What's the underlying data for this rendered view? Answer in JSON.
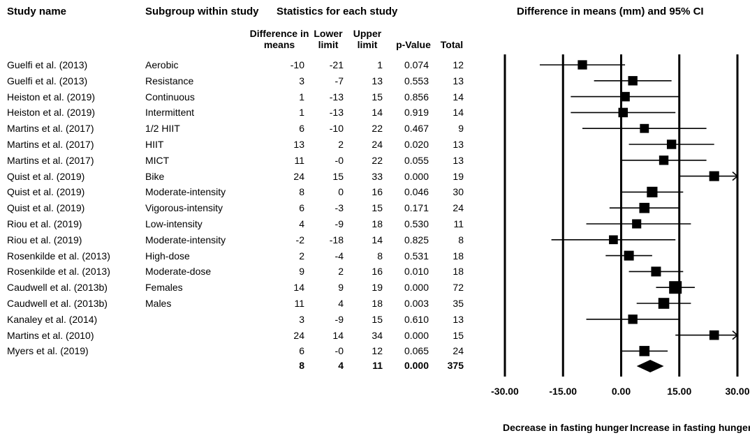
{
  "headers": {
    "study_name": "Study name",
    "subgroup": "Subgroup within study",
    "statistics": "Statistics for each study",
    "plot_title": "Difference in means (mm) and 95% CI",
    "diff": "Difference in means",
    "lower": "Lower limit",
    "upper": "Upper limit",
    "pvalue": "p-Value",
    "total": "Total"
  },
  "rows": [
    {
      "study": "Guelfi et al. (2013)",
      "subgroup": "Aerobic",
      "diff": "-10",
      "lower": "-21",
      "upper": "1",
      "p": "0.074",
      "total": "12"
    },
    {
      "study": "Guelfi et al. (2013)",
      "subgroup": "Resistance",
      "diff": "3",
      "lower": "-7",
      "upper": "13",
      "p": "0.553",
      "total": "13"
    },
    {
      "study": "Heiston et al. (2019)",
      "subgroup": "Continuous",
      "diff": "1",
      "lower": "-13",
      "upper": "15",
      "p": "0.856",
      "total": "14"
    },
    {
      "study": "Heiston et al. (2019)",
      "subgroup": "Intermittent",
      "diff": "1",
      "lower": "-13",
      "upper": "14",
      "p": "0.919",
      "total": "14"
    },
    {
      "study": "Martins et al. (2017)",
      "subgroup": "1/2 HIIT",
      "diff": "6",
      "lower": "-10",
      "upper": "22",
      "p": "0.467",
      "total": "9"
    },
    {
      "study": "Martins et al. (2017)",
      "subgroup": "HIIT",
      "diff": "13",
      "lower": "2",
      "upper": "24",
      "p": "0.020",
      "total": "13"
    },
    {
      "study": "Martins et al. (2017)",
      "subgroup": "MICT",
      "diff": "11",
      "lower": "-0",
      "upper": "22",
      "p": "0.055",
      "total": "13"
    },
    {
      "study": "Quist et al. (2019)",
      "subgroup": "Bike",
      "diff": "24",
      "lower": "15",
      "upper": "33",
      "p": "0.000",
      "total": "19"
    },
    {
      "study": "Quist et al. (2019)",
      "subgroup": "Moderate-intensity",
      "diff": "8",
      "lower": "0",
      "upper": "16",
      "p": "0.046",
      "total": "30"
    },
    {
      "study": "Quist et al. (2019)",
      "subgroup": "Vigorous-intensity",
      "diff": "6",
      "lower": "-3",
      "upper": "15",
      "p": "0.171",
      "total": "24"
    },
    {
      "study": "Riou et al. (2019)",
      "subgroup": "Low-intensity",
      "diff": "4",
      "lower": "-9",
      "upper": "18",
      "p": "0.530",
      "total": "11"
    },
    {
      "study": "Riou et al. (2019)",
      "subgroup": "Moderate-intensity",
      "diff": "-2",
      "lower": "-18",
      "upper": "14",
      "p": "0.825",
      "total": "8"
    },
    {
      "study": "Rosenkilde et al. (2013)",
      "subgroup": "High-dose",
      "diff": "2",
      "lower": "-4",
      "upper": "8",
      "p": "0.531",
      "total": "18"
    },
    {
      "study": "Rosenkilde et al. (2013)",
      "subgroup": "Moderate-dose",
      "diff": "9",
      "lower": "2",
      "upper": "16",
      "p": "0.010",
      "total": "18"
    },
    {
      "study": "Caudwell et al. (2013b)",
      "subgroup": "Females",
      "diff": "14",
      "lower": "9",
      "upper": "19",
      "p": "0.000",
      "total": "72"
    },
    {
      "study": "Caudwell et al. (2013b)",
      "subgroup": "Males",
      "diff": "11",
      "lower": "4",
      "upper": "18",
      "p": "0.003",
      "total": "35"
    },
    {
      "study": "Kanaley et al. (2014)",
      "subgroup": "",
      "diff": "3",
      "lower": "-9",
      "upper": "15",
      "p": "0.610",
      "total": "13"
    },
    {
      "study": "Martins et al. (2010)",
      "subgroup": "",
      "diff": "24",
      "lower": "14",
      "upper": "34",
      "p": "0.000",
      "total": "15"
    },
    {
      "study": "Myers et al. (2019)",
      "subgroup": "",
      "diff": "6",
      "lower": "-0",
      "upper": "12",
      "p": "0.065",
      "total": "24"
    }
  ],
  "summary": {
    "diff": "8",
    "lower": "4",
    "upper": "11",
    "p": "0.000",
    "total": "375"
  },
  "chart_data": {
    "type": "forest",
    "title": "Difference in means (mm) and 95% CI",
    "xlim": [
      -30,
      30
    ],
    "ticks": [
      "-30.00",
      "-15.00",
      "0.00",
      "15.00",
      "30.00"
    ],
    "tick_values": [
      -30,
      -15,
      0,
      15,
      30
    ],
    "left_label": "Decrease in fasting hunger",
    "right_label": "Increase in fasting hunger",
    "points": [
      {
        "est": -10.0,
        "lo": -21.0,
        "hi": 1.0
      },
      {
        "est": 3.0,
        "lo": -7.0,
        "hi": 13.0
      },
      {
        "est": 1.0,
        "lo": -13.0,
        "hi": 15.0
      },
      {
        "est": 0.5,
        "lo": -13.0,
        "hi": 14.0
      },
      {
        "est": 6.0,
        "lo": -10.0,
        "hi": 22.0
      },
      {
        "est": 13.0,
        "lo": 2.0,
        "hi": 24.0
      },
      {
        "est": 11.0,
        "lo": 0.0,
        "hi": 22.0
      },
      {
        "est": 24.0,
        "lo": 15.0,
        "hi": 33.0
      },
      {
        "est": 8.0,
        "lo": 0.0,
        "hi": 16.0
      },
      {
        "est": 6.0,
        "lo": -3.0,
        "hi": 15.0
      },
      {
        "est": 4.0,
        "lo": -9.0,
        "hi": 18.0
      },
      {
        "est": -2.0,
        "lo": -18.0,
        "hi": 14.0
      },
      {
        "est": 2.0,
        "lo": -4.0,
        "hi": 8.0
      },
      {
        "est": 9.0,
        "lo": 2.0,
        "hi": 16.0
      },
      {
        "est": 14.0,
        "lo": 9.0,
        "hi": 19.0
      },
      {
        "est": 11.0,
        "lo": 4.0,
        "hi": 18.0
      },
      {
        "est": 3.0,
        "lo": -9.0,
        "hi": 15.0
      },
      {
        "est": 24.0,
        "lo": 14.0,
        "hi": 34.0
      },
      {
        "est": 6.0,
        "lo": 0.0,
        "hi": 12.0
      }
    ],
    "weights": [
      12,
      13,
      14,
      14,
      9,
      13,
      13,
      19,
      30,
      24,
      11,
      8,
      18,
      18,
      72,
      35,
      13,
      15,
      24
    ],
    "summary": {
      "est": 7.5,
      "lo": 4.0,
      "hi": 11.0
    }
  }
}
